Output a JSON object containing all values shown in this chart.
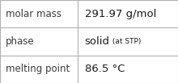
{
  "rows": [
    {
      "label": "molar mass",
      "value_parts": [
        {
          "text": "291.97 g/mol",
          "bold": false,
          "small": false
        }
      ]
    },
    {
      "label": "phase",
      "value_parts": [
        {
          "text": "solid",
          "bold": false,
          "small": false
        },
        {
          "text": " (at STP)",
          "bold": false,
          "small": true
        }
      ]
    },
    {
      "label": "melting point",
      "value_parts": [
        {
          "text": "86.5 °C",
          "bold": false,
          "small": false
        }
      ]
    }
  ],
  "background_color": "#ffffff",
  "border_color": "#b0b0b0",
  "label_color": "#3a3a3a",
  "value_color": "#1a1a1a",
  "font_size_label": 8.5,
  "font_size_value": 9.5,
  "font_size_small": 6.5,
  "col_split": 0.435
}
